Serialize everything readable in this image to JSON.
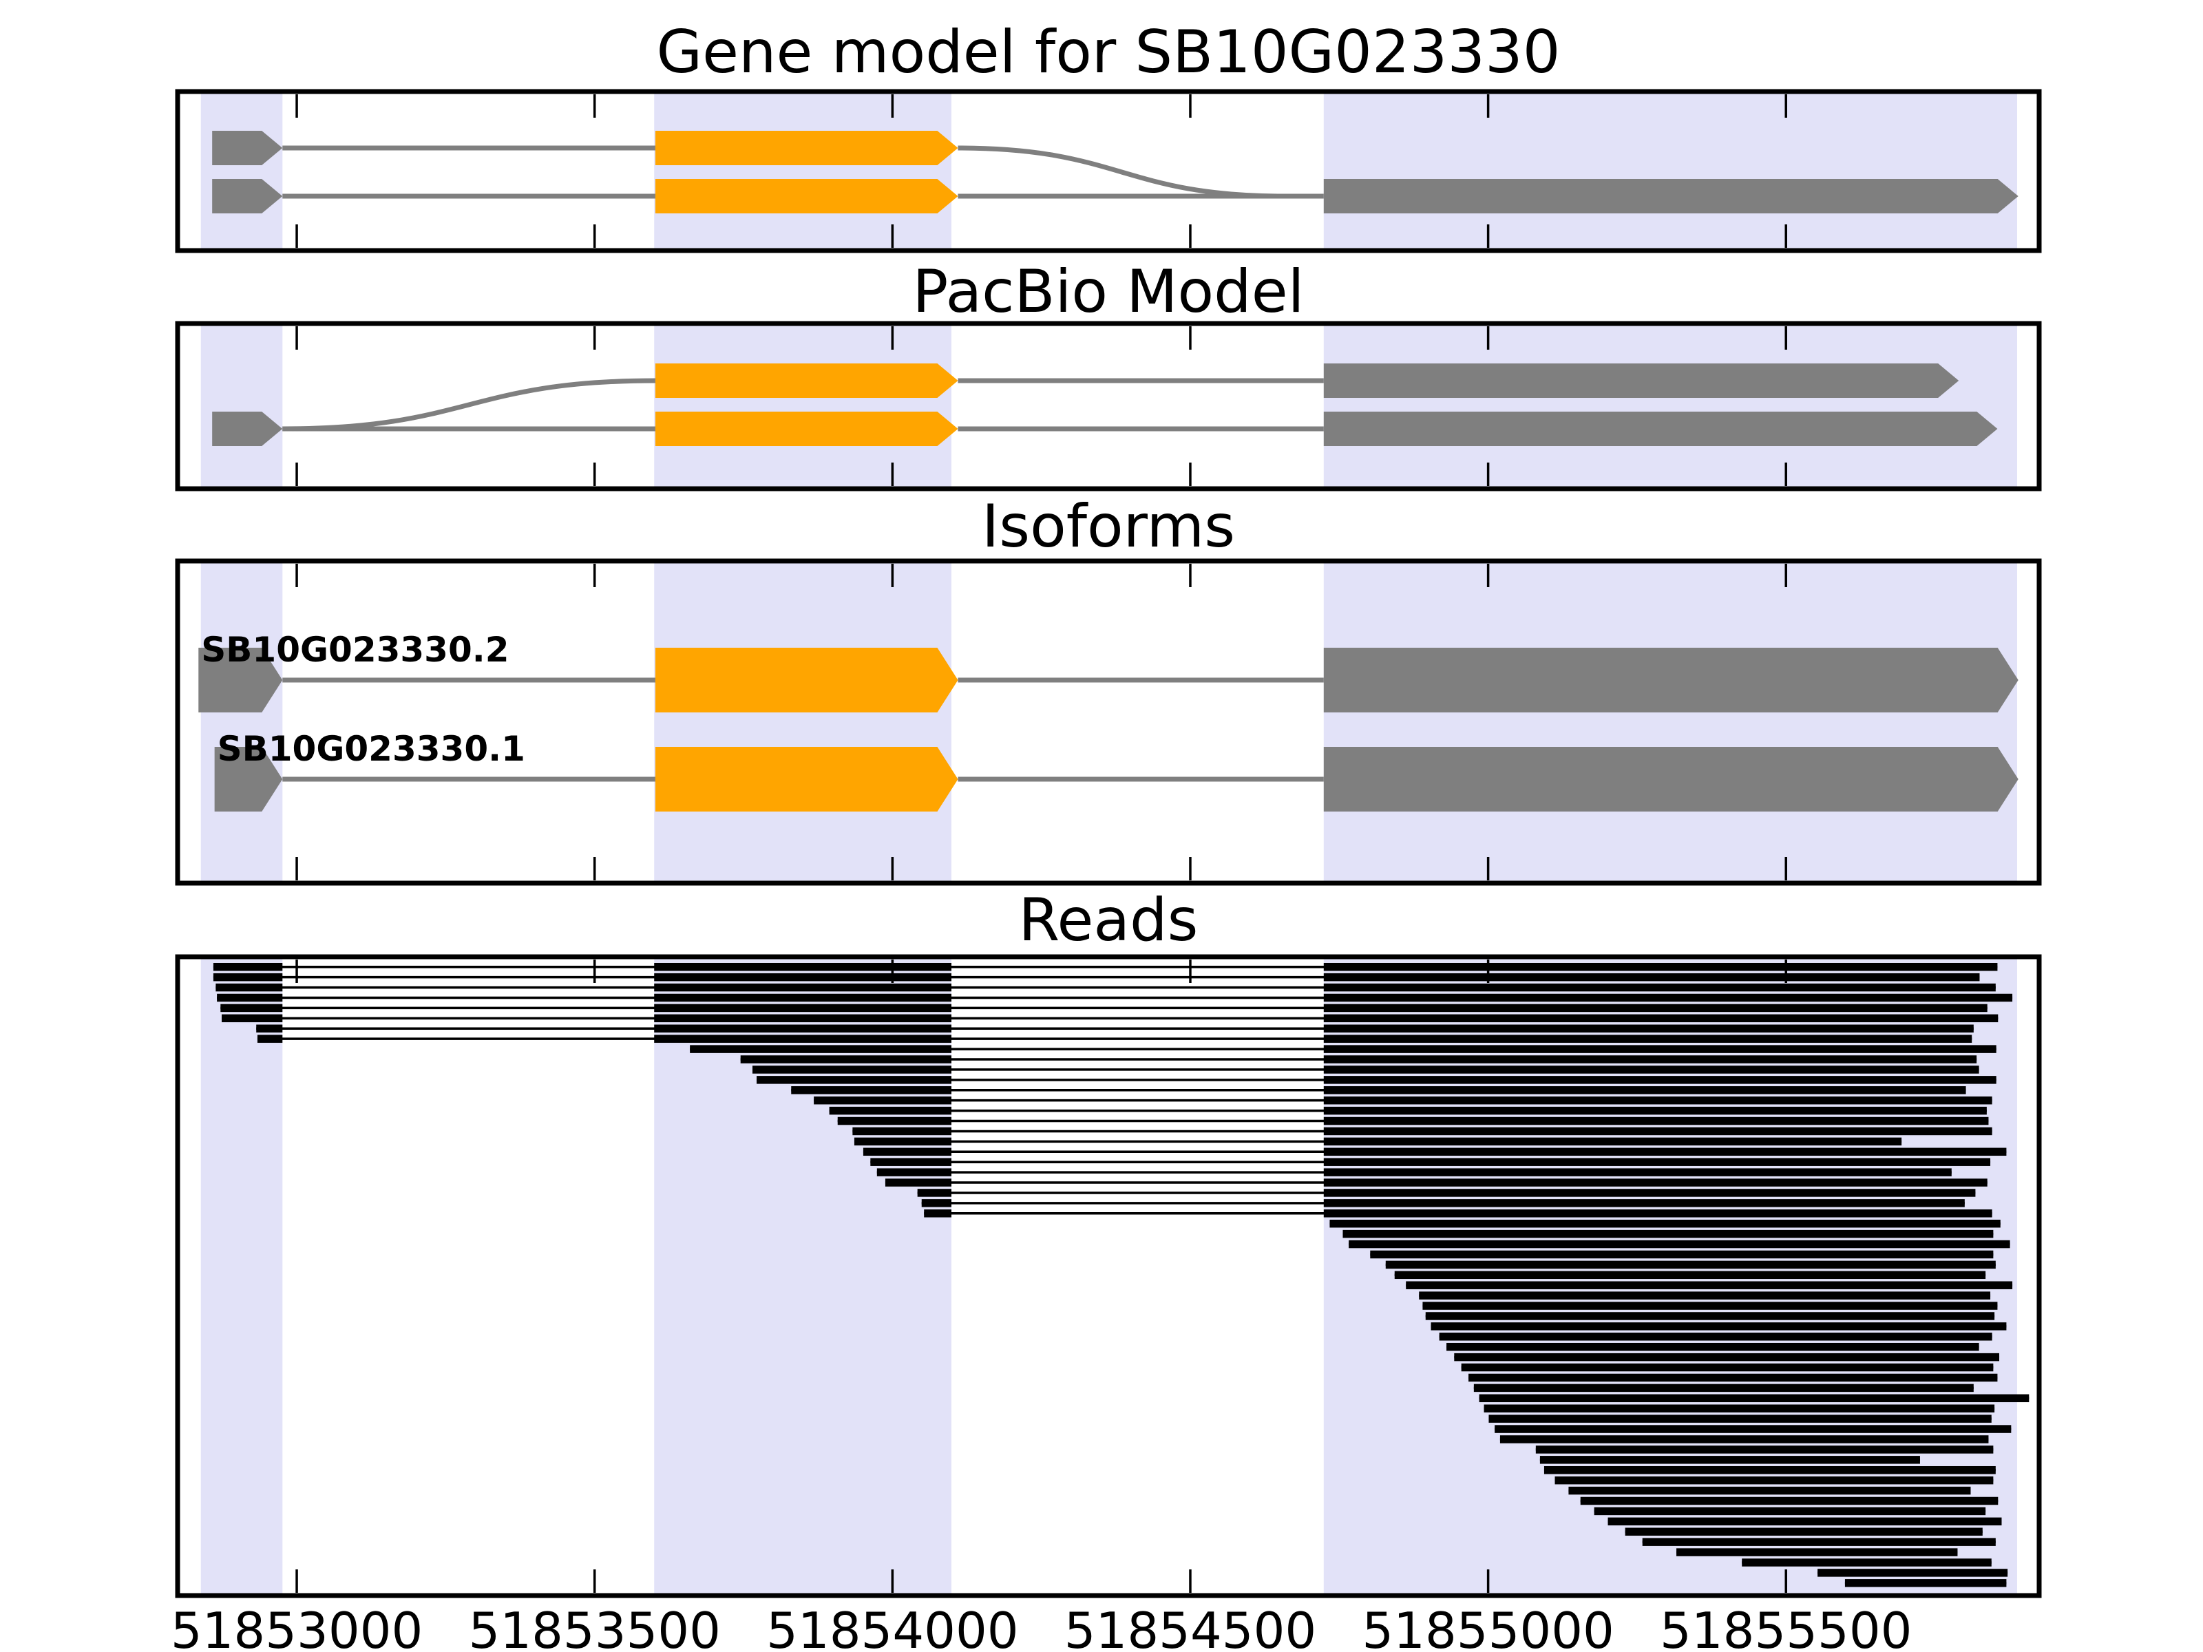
{
  "chart_data": {
    "type": "custom",
    "subtype": "genome-browser-gene-model-and-read-tracks",
    "x_axis": {
      "min": 51852800,
      "max": 51855925,
      "tick_values": [
        51853000,
        51853500,
        51854000,
        51854500,
        51855000,
        51855500
      ],
      "tick_labels": [
        "51853000",
        "51853500",
        "51854000",
        "51854500",
        "51855000",
        "51855500"
      ]
    },
    "highlight_regions": [
      [
        51852839,
        51852976
      ],
      [
        51853600,
        51854099
      ],
      [
        51854724,
        51855888
      ]
    ],
    "colors": {
      "cds": "#FFA500",
      "exon": "#7F7F7F",
      "line": "#7F7F7F",
      "highlight": "#E2E2F8",
      "read": "#000000",
      "border": "#000000",
      "background": "#FFFFFF"
    },
    "panels": {
      "gene_model": {
        "title": "Gene model for SB10G023330",
        "transcripts": [
          {
            "row": 0,
            "left_exon": [
              51852858,
              51852976
            ],
            "cds": [
              51853602,
              51854110
            ],
            "right_exon": null,
            "splice_to_next_row_at": 51854660
          },
          {
            "row": 1,
            "left_exon": [
              51852858,
              51852976
            ],
            "cds": [
              51853602,
              51854110
            ],
            "right_exon": [
              51854724,
              51855890
            ]
          }
        ]
      },
      "pacbio_model": {
        "title": "PacBio Model",
        "transcripts": [
          {
            "row": 0,
            "left_exon": null,
            "cds": [
              51853602,
              51854110
            ],
            "right_exon": [
              51854724,
              51855790
            ]
          },
          {
            "row": 1,
            "left_exon": [
              51852858,
              51852976
            ],
            "cds": [
              51853602,
              51854110
            ],
            "right_exon": [
              51854724,
              51855855
            ],
            "splice_from_left_exon_to_row": 0
          }
        ]
      },
      "isoforms": {
        "title": "Isoforms",
        "transcripts": [
          {
            "row": 0,
            "label": "SB10G023330.2",
            "left_exon": [
              51852835,
              51852976
            ],
            "cds": [
              51853602,
              51854110
            ],
            "right_exon": [
              51854724,
              51855890
            ]
          },
          {
            "row": 1,
            "label": "SB10G023330.1",
            "left_exon": [
              51852862,
              51852976
            ],
            "cds": [
              51853602,
              51854110
            ],
            "right_exon": [
              51854724,
              51855890
            ]
          }
        ]
      },
      "reads": {
        "title": "Reads",
        "exon_windows": [
          [
            51852839,
            51852976
          ],
          [
            51853600,
            51854099
          ],
          [
            51854724,
            51855925
          ]
        ],
        "alignments": [
          [
            51852860,
            51855855
          ],
          [
            51852860,
            51855825
          ],
          [
            51852864,
            51855852
          ],
          [
            51852866,
            51855880
          ],
          [
            51852872,
            51855838
          ],
          [
            51852874,
            51855856
          ],
          [
            51852932,
            51855815
          ],
          [
            51852934,
            51855812
          ],
          [
            51853660,
            51855853
          ],
          [
            51853745,
            51855820
          ],
          [
            51853765,
            51855824
          ],
          [
            51853772,
            51855853
          ],
          [
            51853830,
            51855802
          ],
          [
            51853868,
            51855846
          ],
          [
            51853894,
            51855837
          ],
          [
            51853908,
            51855840
          ],
          [
            51853933,
            51855846
          ],
          [
            51853936,
            51855694
          ],
          [
            51853951,
            51855870
          ],
          [
            51853963,
            51855843
          ],
          [
            51853974,
            51855778
          ],
          [
            51853988,
            51855838
          ],
          [
            51854042,
            51855818
          ],
          [
            51854049,
            51855800
          ],
          [
            51854053,
            51855846
          ],
          [
            51854734,
            51855860
          ],
          [
            51854756,
            51855848
          ],
          [
            51854766,
            51855876
          ],
          [
            51854802,
            51855848
          ],
          [
            51854828,
            51855852
          ],
          [
            51854843,
            51855835
          ],
          [
            51854862,
            51855880
          ],
          [
            51854884,
            51855843
          ],
          [
            51854890,
            51855855
          ],
          [
            51854895,
            51855850
          ],
          [
            51854904,
            51855870
          ],
          [
            51854918,
            51855846
          ],
          [
            51854930,
            51855824
          ],
          [
            51854943,
            51855858
          ],
          [
            51854955,
            51855848
          ],
          [
            51854967,
            51855855
          ],
          [
            51854976,
            51855815
          ],
          [
            51854985,
            51855908
          ],
          [
            51854993,
            51855850
          ],
          [
            51855001,
            51855845
          ],
          [
            51855011,
            51855878
          ],
          [
            51855020,
            51855840
          ],
          [
            51855080,
            51855848
          ],
          [
            51855087,
            51855725
          ],
          [
            51855094,
            51855852
          ],
          [
            51855112,
            51855848
          ],
          [
            51855135,
            51855810
          ],
          [
            51855155,
            51855856
          ],
          [
            51855178,
            51855835
          ],
          [
            51855201,
            51855862
          ],
          [
            51855230,
            51855830
          ],
          [
            51855259,
            51855852
          ],
          [
            51855316,
            51855788
          ],
          [
            51855426,
            51855845
          ],
          [
            51855553,
            51855872
          ],
          [
            51855599,
            51855870
          ]
        ]
      }
    }
  }
}
